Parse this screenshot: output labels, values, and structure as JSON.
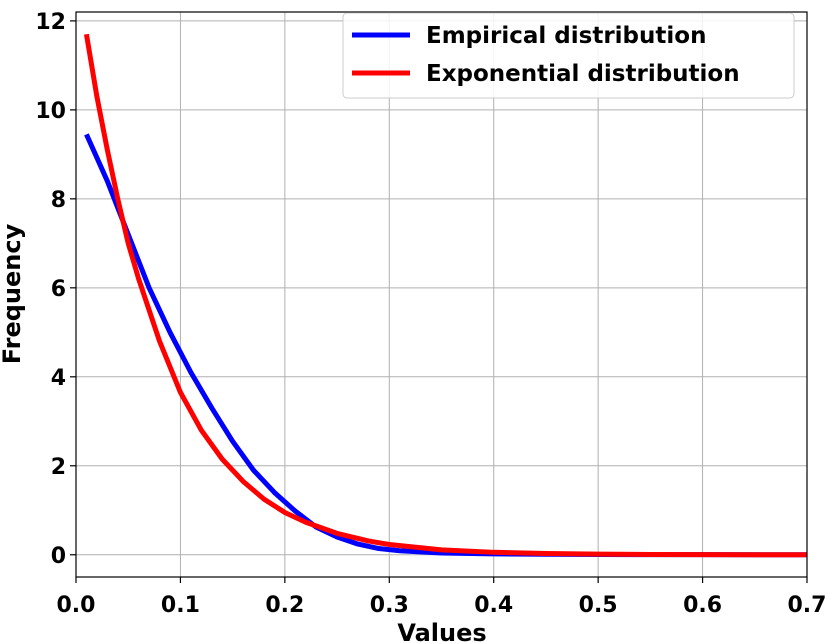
{
  "chart_data": {
    "type": "line",
    "title": "",
    "xlabel": "Values",
    "ylabel": "Frequency",
    "xlim": [
      0.0,
      0.7
    ],
    "ylim": [
      -0.5,
      12.2
    ],
    "grid": true,
    "xticks": [
      "0.0",
      "0.1",
      "0.2",
      "0.3",
      "0.4",
      "0.5",
      "0.6",
      "0.7"
    ],
    "yticks": [
      "0",
      "2",
      "4",
      "6",
      "8",
      "10",
      "12"
    ],
    "legend_position": "top-right",
    "series": [
      {
        "name": "Empirical distribution",
        "color": "#0000ff",
        "x": [
          0.01,
          0.03,
          0.05,
          0.07,
          0.09,
          0.11,
          0.13,
          0.15,
          0.17,
          0.19,
          0.21,
          0.23,
          0.25,
          0.27,
          0.29,
          0.31,
          0.35,
          0.4,
          0.45,
          0.5,
          0.6,
          0.7
        ],
        "y": [
          9.45,
          8.4,
          7.2,
          6.0,
          5.0,
          4.1,
          3.3,
          2.55,
          1.9,
          1.4,
          0.98,
          0.62,
          0.4,
          0.24,
          0.14,
          0.09,
          0.04,
          0.02,
          0.01,
          0.005,
          0.002,
          0.0
        ]
      },
      {
        "name": "Exponential distribution",
        "color": "#ff0000",
        "x": [
          0.01,
          0.02,
          0.03,
          0.04,
          0.05,
          0.06,
          0.08,
          0.1,
          0.12,
          0.14,
          0.16,
          0.18,
          0.2,
          0.22,
          0.25,
          0.28,
          0.3,
          0.35,
          0.4,
          0.45,
          0.5,
          0.55,
          0.6,
          0.65,
          0.7
        ],
        "y": [
          11.7,
          10.3,
          9.1,
          8.0,
          7.0,
          6.2,
          4.8,
          3.65,
          2.8,
          2.15,
          1.65,
          1.25,
          0.95,
          0.73,
          0.48,
          0.31,
          0.23,
          0.11,
          0.055,
          0.027,
          0.013,
          0.006,
          0.003,
          0.0015,
          0.0007
        ]
      }
    ]
  }
}
